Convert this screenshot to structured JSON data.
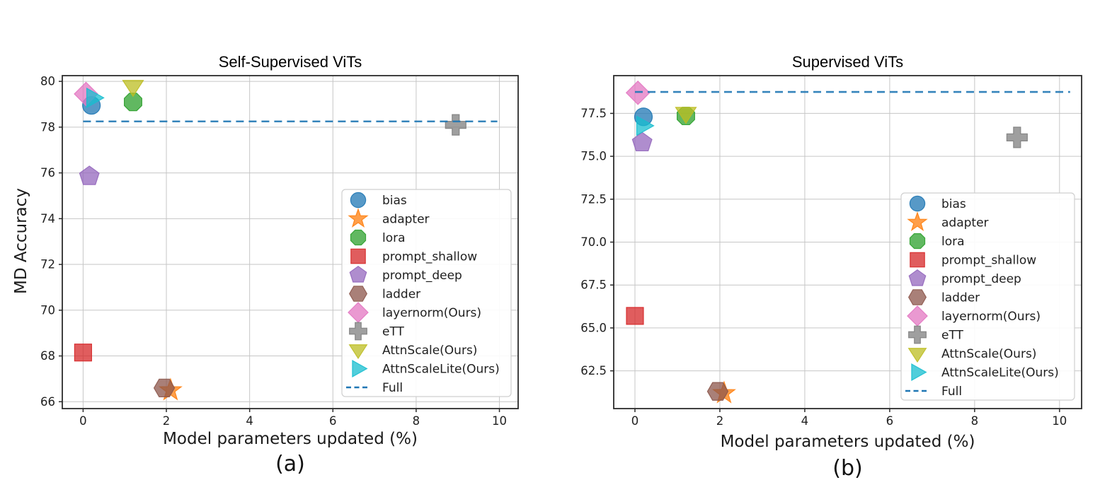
{
  "figure": {
    "background": "#ffffff"
  },
  "legend": {
    "items": [
      {
        "label": "bias",
        "marker": "circle",
        "color": "#1f77b4"
      },
      {
        "label": "adapter",
        "marker": "star",
        "color": "#ff7f0e"
      },
      {
        "label": "lora",
        "marker": "octagon",
        "color": "#2ca02c"
      },
      {
        "label": "prompt_shallow",
        "marker": "square",
        "color": "#d62728"
      },
      {
        "label": "prompt_deep",
        "marker": "pentagon",
        "color": "#9467bd"
      },
      {
        "label": "ladder",
        "marker": "hexagon",
        "color": "#8c564b"
      },
      {
        "label": "layernorm(Ours)",
        "marker": "diamond",
        "color": "#e377c2"
      },
      {
        "label": "eTT",
        "marker": "plus",
        "color": "#7f7f7f"
      },
      {
        "label": "AttnScale(Ours)",
        "marker": "triangle-down",
        "color": "#bcbd22"
      },
      {
        "label": "AttnScaleLite(Ours)",
        "marker": "triangle-right",
        "color": "#17becf"
      },
      {
        "label": "Full",
        "marker": "dashed-line",
        "color": "#1f77b4"
      }
    ],
    "position": "lower right"
  },
  "chart_data": [
    {
      "type": "scatter",
      "title": "Self-Supervised ViTs",
      "caption": "(a)",
      "xlabel": "Model parameters updated (%)",
      "ylabel": "MD Accuracy",
      "grid": true,
      "xlim": [
        -0.5,
        10.45
      ],
      "ylim": [
        65.7,
        80.25
      ],
      "xticks": [
        0,
        2,
        4,
        6,
        8,
        10
      ],
      "xtick_labels": [
        "0",
        "2",
        "4",
        "6",
        "8",
        "10"
      ],
      "yticks": [
        66,
        68,
        70,
        72,
        74,
        76,
        78,
        80
      ],
      "ytick_labels": [
        "66",
        "68",
        "70",
        "72",
        "74",
        "76",
        "78",
        "80"
      ],
      "full_line": {
        "name": "Full",
        "y": 78.25,
        "x_start": 0.0,
        "x_end": 9.95,
        "style": "dashed",
        "color": "#1f77b4"
      },
      "series": [
        {
          "name": "bias",
          "x": 0.2,
          "y": 78.95
        },
        {
          "name": "adapter",
          "x": 2.1,
          "y": 66.5
        },
        {
          "name": "lora",
          "x": 1.2,
          "y": 79.1
        },
        {
          "name": "prompt_shallow",
          "x": 0.0,
          "y": 68.15
        },
        {
          "name": "prompt_deep",
          "x": 0.15,
          "y": 75.85
        },
        {
          "name": "ladder",
          "x": 1.95,
          "y": 66.6
        },
        {
          "name": "layernorm(Ours)",
          "x": 0.07,
          "y": 79.45
        },
        {
          "name": "eTT",
          "x": 8.95,
          "y": 78.1
        },
        {
          "name": "AttnScale(Ours)",
          "x": 1.2,
          "y": 79.78
        },
        {
          "name": "AttnScaleLite(Ours)",
          "x": 0.25,
          "y": 79.28
        }
      ]
    },
    {
      "type": "scatter",
      "title": "Supervised ViTs",
      "caption": "(b)",
      "xlabel": "Model parameters updated (%)",
      "ylabel": "",
      "grid": true,
      "xlim": [
        -0.5,
        10.52
      ],
      "ylim": [
        60.3,
        79.7
      ],
      "xticks": [
        0,
        2,
        4,
        6,
        8,
        10
      ],
      "xtick_labels": [
        "0",
        "2",
        "4",
        "6",
        "8",
        "10"
      ],
      "yticks": [
        62.5,
        65.0,
        67.5,
        70.0,
        72.5,
        75.0,
        77.5
      ],
      "ytick_labels": [
        "62.5",
        "65.0",
        "67.5",
        "70.0",
        "72.5",
        "75.0",
        "77.5"
      ],
      "full_line": {
        "name": "Full",
        "y": 78.75,
        "x_start": 0.0,
        "x_end": 10.25,
        "style": "dashed",
        "color": "#1f77b4"
      },
      "series": [
        {
          "name": "bias",
          "x": 0.2,
          "y": 77.3
        },
        {
          "name": "adapter",
          "x": 2.1,
          "y": 61.2
        },
        {
          "name": "lora",
          "x": 1.2,
          "y": 77.35
        },
        {
          "name": "prompt_shallow",
          "x": 0.0,
          "y": 65.7
        },
        {
          "name": "prompt_deep",
          "x": 0.17,
          "y": 75.8
        },
        {
          "name": "ladder",
          "x": 1.95,
          "y": 61.3
        },
        {
          "name": "layernorm(Ours)",
          "x": 0.07,
          "y": 78.7
        },
        {
          "name": "eTT",
          "x": 9.0,
          "y": 76.1
        },
        {
          "name": "AttnScale(Ours)",
          "x": 1.2,
          "y": 77.5
        },
        {
          "name": "AttnScaleLite(Ours)",
          "x": 0.2,
          "y": 76.78
        }
      ]
    }
  ]
}
